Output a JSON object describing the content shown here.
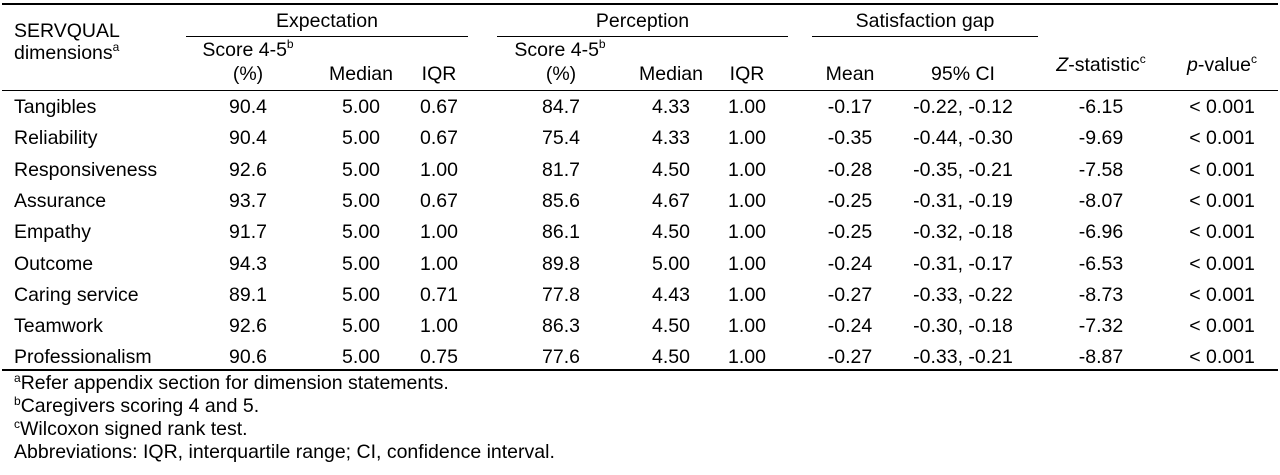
{
  "header": {
    "dimension_label_line1": "SERVQUAL",
    "dimension_label_line2": "dimensions",
    "dimension_label_sup": "a",
    "groups": {
      "expectation": "Expectation",
      "perception": "Perception",
      "satisfaction_gap": "Satisfaction gap"
    },
    "score_line1": "Score 4-5",
    "score_sup": "b",
    "score_line2": "(%)",
    "median": "Median",
    "iqr": "IQR",
    "mean": "Mean",
    "ci": "95% CI",
    "z_italic": "Z",
    "z_rest": "-statistic",
    "z_sup": "c",
    "p_italic": "p",
    "p_rest": "-value",
    "p_sup": "c"
  },
  "rows": [
    {
      "dimension": "Tangibles",
      "exp_score": "90.4",
      "exp_median": "5.00",
      "exp_iqr": "0.67",
      "per_score": "84.7",
      "per_median": "4.33",
      "per_iqr": "1.00",
      "gap_mean": "-0.17",
      "gap_ci": "-0.22, -0.12",
      "z": "-6.15",
      "p": "< 0.001"
    },
    {
      "dimension": "Reliability",
      "exp_score": "90.4",
      "exp_median": "5.00",
      "exp_iqr": "0.67",
      "per_score": "75.4",
      "per_median": "4.33",
      "per_iqr": "1.00",
      "gap_mean": "-0.35",
      "gap_ci": "-0.44, -0.30",
      "z": "-9.69",
      "p": "< 0.001"
    },
    {
      "dimension": "Responsiveness",
      "exp_score": "92.6",
      "exp_median": "5.00",
      "exp_iqr": "1.00",
      "per_score": "81.7",
      "per_median": "4.50",
      "per_iqr": "1.00",
      "gap_mean": "-0.28",
      "gap_ci": "-0.35, -0.21",
      "z": "-7.58",
      "p": "< 0.001"
    },
    {
      "dimension": "Assurance",
      "exp_score": "93.7",
      "exp_median": "5.00",
      "exp_iqr": "0.67",
      "per_score": "85.6",
      "per_median": "4.67",
      "per_iqr": "1.00",
      "gap_mean": "-0.25",
      "gap_ci": "-0.31, -0.19",
      "z": "-8.07",
      "p": "< 0.001"
    },
    {
      "dimension": "Empathy",
      "exp_score": "91.7",
      "exp_median": "5.00",
      "exp_iqr": "1.00",
      "per_score": "86.1",
      "per_median": "4.50",
      "per_iqr": "1.00",
      "gap_mean": "-0.25",
      "gap_ci": "-0.32, -0.18",
      "z": "-6.96",
      "p": "< 0.001"
    },
    {
      "dimension": "Outcome",
      "exp_score": "94.3",
      "exp_median": "5.00",
      "exp_iqr": "1.00",
      "per_score": "89.8",
      "per_median": "5.00",
      "per_iqr": "1.00",
      "gap_mean": "-0.24",
      "gap_ci": "-0.31, -0.17",
      "z": "-6.53",
      "p": "< 0.001"
    },
    {
      "dimension": "Caring service",
      "exp_score": "89.1",
      "exp_median": "5.00",
      "exp_iqr": "0.71",
      "per_score": "77.8",
      "per_median": "4.43",
      "per_iqr": "1.00",
      "gap_mean": "-0.27",
      "gap_ci": "-0.33, -0.22",
      "z": "-8.73",
      "p": "< 0.001"
    },
    {
      "dimension": "Teamwork",
      "exp_score": "92.6",
      "exp_median": "5.00",
      "exp_iqr": "1.00",
      "per_score": "86.3",
      "per_median": "4.50",
      "per_iqr": "1.00",
      "gap_mean": "-0.24",
      "gap_ci": "-0.30, -0.18",
      "z": "-7.32",
      "p": "< 0.001"
    },
    {
      "dimension": "Professionalism",
      "exp_score": "90.6",
      "exp_median": "5.00",
      "exp_iqr": "0.75",
      "per_score": "77.6",
      "per_median": "4.50",
      "per_iqr": "1.00",
      "gap_mean": "-0.27",
      "gap_ci": "-0.33, -0.21",
      "z": "-8.87",
      "p": "< 0.001"
    }
  ],
  "footnotes": [
    {
      "sup": "a",
      "text": "Refer appendix section for dimension statements."
    },
    {
      "sup": "b",
      "text": "Caregivers scoring 4 and 5."
    },
    {
      "sup": "c",
      "text": "Wilcoxon signed rank test."
    },
    {
      "sup": "",
      "text": "Abbreviations: IQR, interquartile range; CI, confidence interval."
    }
  ]
}
